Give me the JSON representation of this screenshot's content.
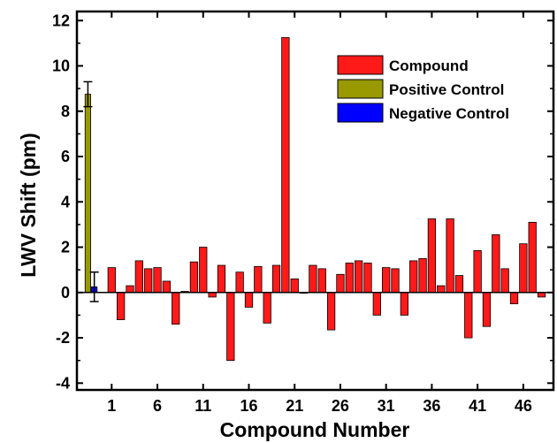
{
  "chart_data": {
    "type": "bar",
    "xlabel": "Compound Number",
    "ylabel": "LWV Shift (pm)",
    "ylim": [
      -4.3,
      12.4
    ],
    "yticks": [
      -4,
      -2,
      0,
      2,
      4,
      6,
      8,
      10,
      12
    ],
    "xlim": [
      -2.8,
      49.3
    ],
    "xticks": [
      1,
      6,
      11,
      16,
      21,
      26,
      31,
      36,
      41,
      46
    ],
    "grid": false,
    "legend_position": "top-right",
    "series": [
      {
        "name": "Compound",
        "color": "#ff1a1a",
        "x": [
          1,
          2,
          3,
          4,
          5,
          6,
          7,
          8,
          9,
          10,
          11,
          12,
          13,
          14,
          15,
          16,
          17,
          18,
          19,
          20,
          21,
          22,
          23,
          24,
          25,
          26,
          27,
          28,
          29,
          30,
          31,
          32,
          33,
          34,
          35,
          36,
          37,
          38,
          39,
          40,
          41,
          42,
          43,
          44,
          45,
          46,
          47,
          48
        ],
        "values": [
          1.1,
          -1.2,
          0.3,
          1.4,
          1.05,
          1.1,
          0.5,
          -1.4,
          0.05,
          1.35,
          2.0,
          -0.2,
          1.2,
          -3.0,
          0.9,
          -0.65,
          1.15,
          -1.35,
          1.2,
          11.25,
          0.6,
          0.0,
          1.2,
          1.05,
          -1.65,
          0.8,
          1.3,
          1.4,
          1.3,
          -1.0,
          1.1,
          1.05,
          -1.0,
          1.4,
          1.5,
          3.25,
          0.3,
          3.25,
          0.75,
          -2.0,
          1.85,
          -1.5,
          2.55,
          1.05,
          -0.5,
          2.15,
          3.1,
          -0.2
        ]
      },
      {
        "name": "Positive Control",
        "color": "#999900",
        "x": [
          -1.6
        ],
        "values": [
          8.75
        ],
        "errors": [
          0.55
        ]
      },
      {
        "name": "Negative Control",
        "color": "#0000ff",
        "x": [
          -0.9
        ],
        "values": [
          0.25
        ],
        "errors": [
          0.65
        ]
      }
    ]
  }
}
